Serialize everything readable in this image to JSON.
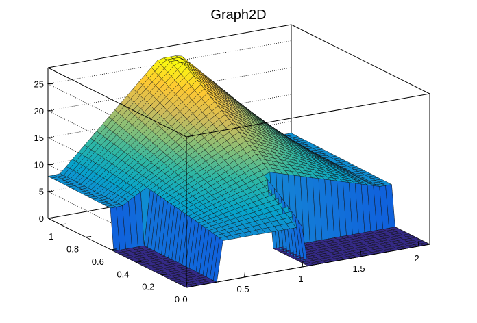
{
  "chart_data": {
    "type": "surface",
    "title": "Graph2D",
    "xlabel": "",
    "ylabel": "",
    "zlabel": "",
    "xlim": [
      0,
      2.1
    ],
    "ylim": [
      0,
      1.1
    ],
    "zlim": [
      0,
      28
    ],
    "x_ticks": [
      "0",
      "0.5",
      "1",
      "1.5",
      "2"
    ],
    "x_tick_values": [
      0,
      0.5,
      1,
      1.5,
      2
    ],
    "y_ticks": [
      "0",
      "0.2",
      "0.4",
      "0.6",
      "0.8",
      "1"
    ],
    "y_tick_values": [
      0,
      0.2,
      0.4,
      0.6,
      0.8,
      1
    ],
    "z_ticks": [
      "0",
      "5",
      "10",
      "15",
      "20",
      "25"
    ],
    "z_tick_values": [
      0,
      5,
      10,
      15,
      20,
      25
    ],
    "grid": true,
    "colormap": [
      "#352a87",
      "#0f5cdd",
      "#1481d6",
      "#06a4ca",
      "#2eb7a4",
      "#87bf77",
      "#d1bb59",
      "#fec832",
      "#f9fb0e"
    ],
    "surface_model": {
      "description_values": "approximate: z = 7.5 + 19*max(0,1-|x-1.05|/0.95)*y^0.9 + 0.3*y, set to 0 where x<0.3 and y<0.6, or x>1.05 and y<0.3",
      "peak": {
        "x": 1.05,
        "y": 1.0,
        "z": 26
      },
      "base_level": 7.5,
      "zero_regions": [
        {
          "x": [
            0,
            0.3
          ],
          "y": [
            0,
            0.6
          ]
        },
        {
          "x": [
            1.05,
            2.1
          ],
          "y": [
            0,
            0.3
          ]
        }
      ]
    }
  }
}
